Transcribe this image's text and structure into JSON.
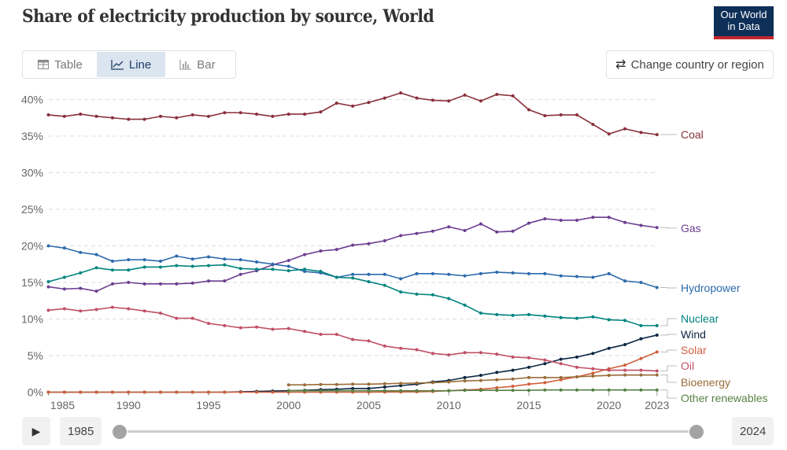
{
  "header": {
    "title": "Share of electricity production by source, World",
    "logo_line1": "Our World",
    "logo_line2": "in Data"
  },
  "tabs": [
    {
      "label": "Table",
      "icon": "table-icon"
    },
    {
      "label": "Line",
      "icon": "line-chart-icon"
    },
    {
      "label": "Bar",
      "icon": "bar-chart-icon"
    }
  ],
  "region_button": {
    "label": "Change country or region",
    "icon": "swap-arrows-icon"
  },
  "timeline": {
    "start": "1985",
    "end": "2024",
    "play_icon": "play-icon"
  },
  "chart_data": {
    "type": "line",
    "title": "Share of electricity production by source, World",
    "xlabel": "",
    "ylabel": "",
    "ylim": [
      0,
      40
    ],
    "yticks": [
      "0%",
      "5%",
      "10%",
      "15%",
      "20%",
      "25%",
      "30%",
      "35%",
      "40%"
    ],
    "yticks_values": [
      0,
      5,
      10,
      15,
      20,
      25,
      30,
      35,
      40
    ],
    "xticks": [
      "1985",
      "1990",
      "1995",
      "2000",
      "2005",
      "2010",
      "2015",
      "2020",
      "2023"
    ],
    "xticks_values": [
      1985,
      1990,
      1995,
      2000,
      2005,
      2010,
      2015,
      2020,
      2023
    ],
    "x_start": 1985,
    "grid": true,
    "legend": "right-inline",
    "series": [
      {
        "name": "Coal",
        "color": "#883039",
        "values": [
          37.9,
          37.7,
          38.0,
          37.7,
          37.5,
          37.3,
          37.3,
          37.7,
          37.5,
          37.9,
          37.7,
          38.2,
          38.2,
          38.0,
          37.7,
          38.0,
          38.0,
          38.3,
          39.5,
          39.1,
          39.6,
          40.2,
          40.9,
          40.2,
          39.9,
          39.8,
          40.6,
          39.8,
          40.7,
          40.5,
          38.6,
          37.8,
          37.9,
          37.9,
          36.6,
          35.3,
          36.0,
          35.5,
          35.2
        ]
      },
      {
        "name": "Gas",
        "color": "#6d3e91",
        "values": [
          14.4,
          14.1,
          14.2,
          13.8,
          14.8,
          15.0,
          14.8,
          14.8,
          14.8,
          14.9,
          15.2,
          15.2,
          16.1,
          16.6,
          17.4,
          18.0,
          18.8,
          19.3,
          19.5,
          20.1,
          20.3,
          20.7,
          21.4,
          21.7,
          22.0,
          22.6,
          22.1,
          23.0,
          21.9,
          22.0,
          23.1,
          23.7,
          23.5,
          23.5,
          23.9,
          23.9,
          23.2,
          22.8,
          22.5
        ]
      },
      {
        "name": "Hydropower",
        "color": "#2c6aab",
        "values": [
          20.0,
          19.7,
          19.1,
          18.8,
          17.9,
          18.1,
          18.1,
          17.9,
          18.6,
          18.2,
          18.5,
          18.2,
          18.1,
          17.8,
          17.5,
          17.2,
          16.5,
          16.3,
          15.7,
          16.1,
          16.1,
          16.1,
          15.5,
          16.2,
          16.2,
          16.1,
          15.9,
          16.2,
          16.4,
          16.3,
          16.2,
          16.2,
          15.9,
          15.8,
          15.7,
          16.2,
          15.2,
          15.0,
          14.3
        ]
      },
      {
        "name": "Nuclear",
        "color": "#00847e",
        "values": [
          15.1,
          15.7,
          16.3,
          17.0,
          16.7,
          16.7,
          17.1,
          17.1,
          17.3,
          17.2,
          17.3,
          17.4,
          16.9,
          16.8,
          16.8,
          16.6,
          16.8,
          16.5,
          15.7,
          15.6,
          15.1,
          14.6,
          13.7,
          13.4,
          13.3,
          12.8,
          11.9,
          10.8,
          10.6,
          10.5,
          10.6,
          10.4,
          10.2,
          10.1,
          10.3,
          9.9,
          9.8,
          9.1,
          9.1
        ]
      },
      {
        "name": "Wind",
        "color": "#0b2541",
        "values": [
          0,
          0,
          0,
          0,
          0,
          0,
          0,
          0,
          0,
          0,
          0,
          0,
          0.05,
          0.1,
          0.15,
          0.2,
          0.25,
          0.35,
          0.4,
          0.5,
          0.5,
          0.7,
          0.9,
          1.1,
          1.4,
          1.6,
          2.0,
          2.3,
          2.7,
          3.0,
          3.4,
          3.9,
          4.5,
          4.8,
          5.3,
          6.0,
          6.5,
          7.3,
          7.8
        ]
      },
      {
        "name": "Solar",
        "color": "#d0603d",
        "values": [
          0,
          0,
          0,
          0,
          0,
          0,
          0,
          0,
          0,
          0,
          0,
          0,
          0,
          0,
          0,
          0,
          0,
          0,
          0,
          0,
          0,
          0.02,
          0.03,
          0.05,
          0.1,
          0.2,
          0.3,
          0.4,
          0.6,
          0.8,
          1.1,
          1.3,
          1.7,
          2.1,
          2.6,
          3.2,
          3.7,
          4.6,
          5.5
        ]
      },
      {
        "name": "Oil",
        "color": "#c15065",
        "values": [
          11.2,
          11.4,
          11.1,
          11.3,
          11.6,
          11.4,
          11.1,
          10.8,
          10.1,
          10.1,
          9.4,
          9.1,
          8.8,
          8.9,
          8.6,
          8.7,
          8.3,
          7.9,
          7.9,
          7.2,
          7.0,
          6.3,
          6.0,
          5.8,
          5.3,
          5.1,
          5.4,
          5.4,
          5.2,
          4.8,
          4.7,
          4.4,
          3.9,
          3.4,
          3.2,
          3.0,
          3.0,
          3.0,
          2.9
        ]
      },
      {
        "name": "Bioenergy",
        "color": "#996d39",
        "values": [
          null,
          null,
          null,
          null,
          null,
          null,
          null,
          null,
          null,
          null,
          null,
          null,
          null,
          null,
          null,
          1.0,
          1.0,
          1.05,
          1.05,
          1.1,
          1.1,
          1.15,
          1.2,
          1.25,
          1.3,
          1.4,
          1.55,
          1.6,
          1.7,
          1.8,
          2.0,
          2.0,
          2.0,
          2.1,
          2.2,
          2.3,
          2.35,
          2.35,
          2.35
        ]
      },
      {
        "name": "Other renewables",
        "color": "#578145",
        "values": [
          null,
          null,
          null,
          null,
          null,
          null,
          null,
          null,
          null,
          null,
          null,
          null,
          null,
          null,
          null,
          0.2,
          0.2,
          0.2,
          0.2,
          0.2,
          0.2,
          0.2,
          0.2,
          0.2,
          0.2,
          0.2,
          0.25,
          0.25,
          0.25,
          0.25,
          0.25,
          0.3,
          0.3,
          0.3,
          0.3,
          0.3,
          0.3,
          0.3,
          0.3
        ]
      }
    ]
  }
}
